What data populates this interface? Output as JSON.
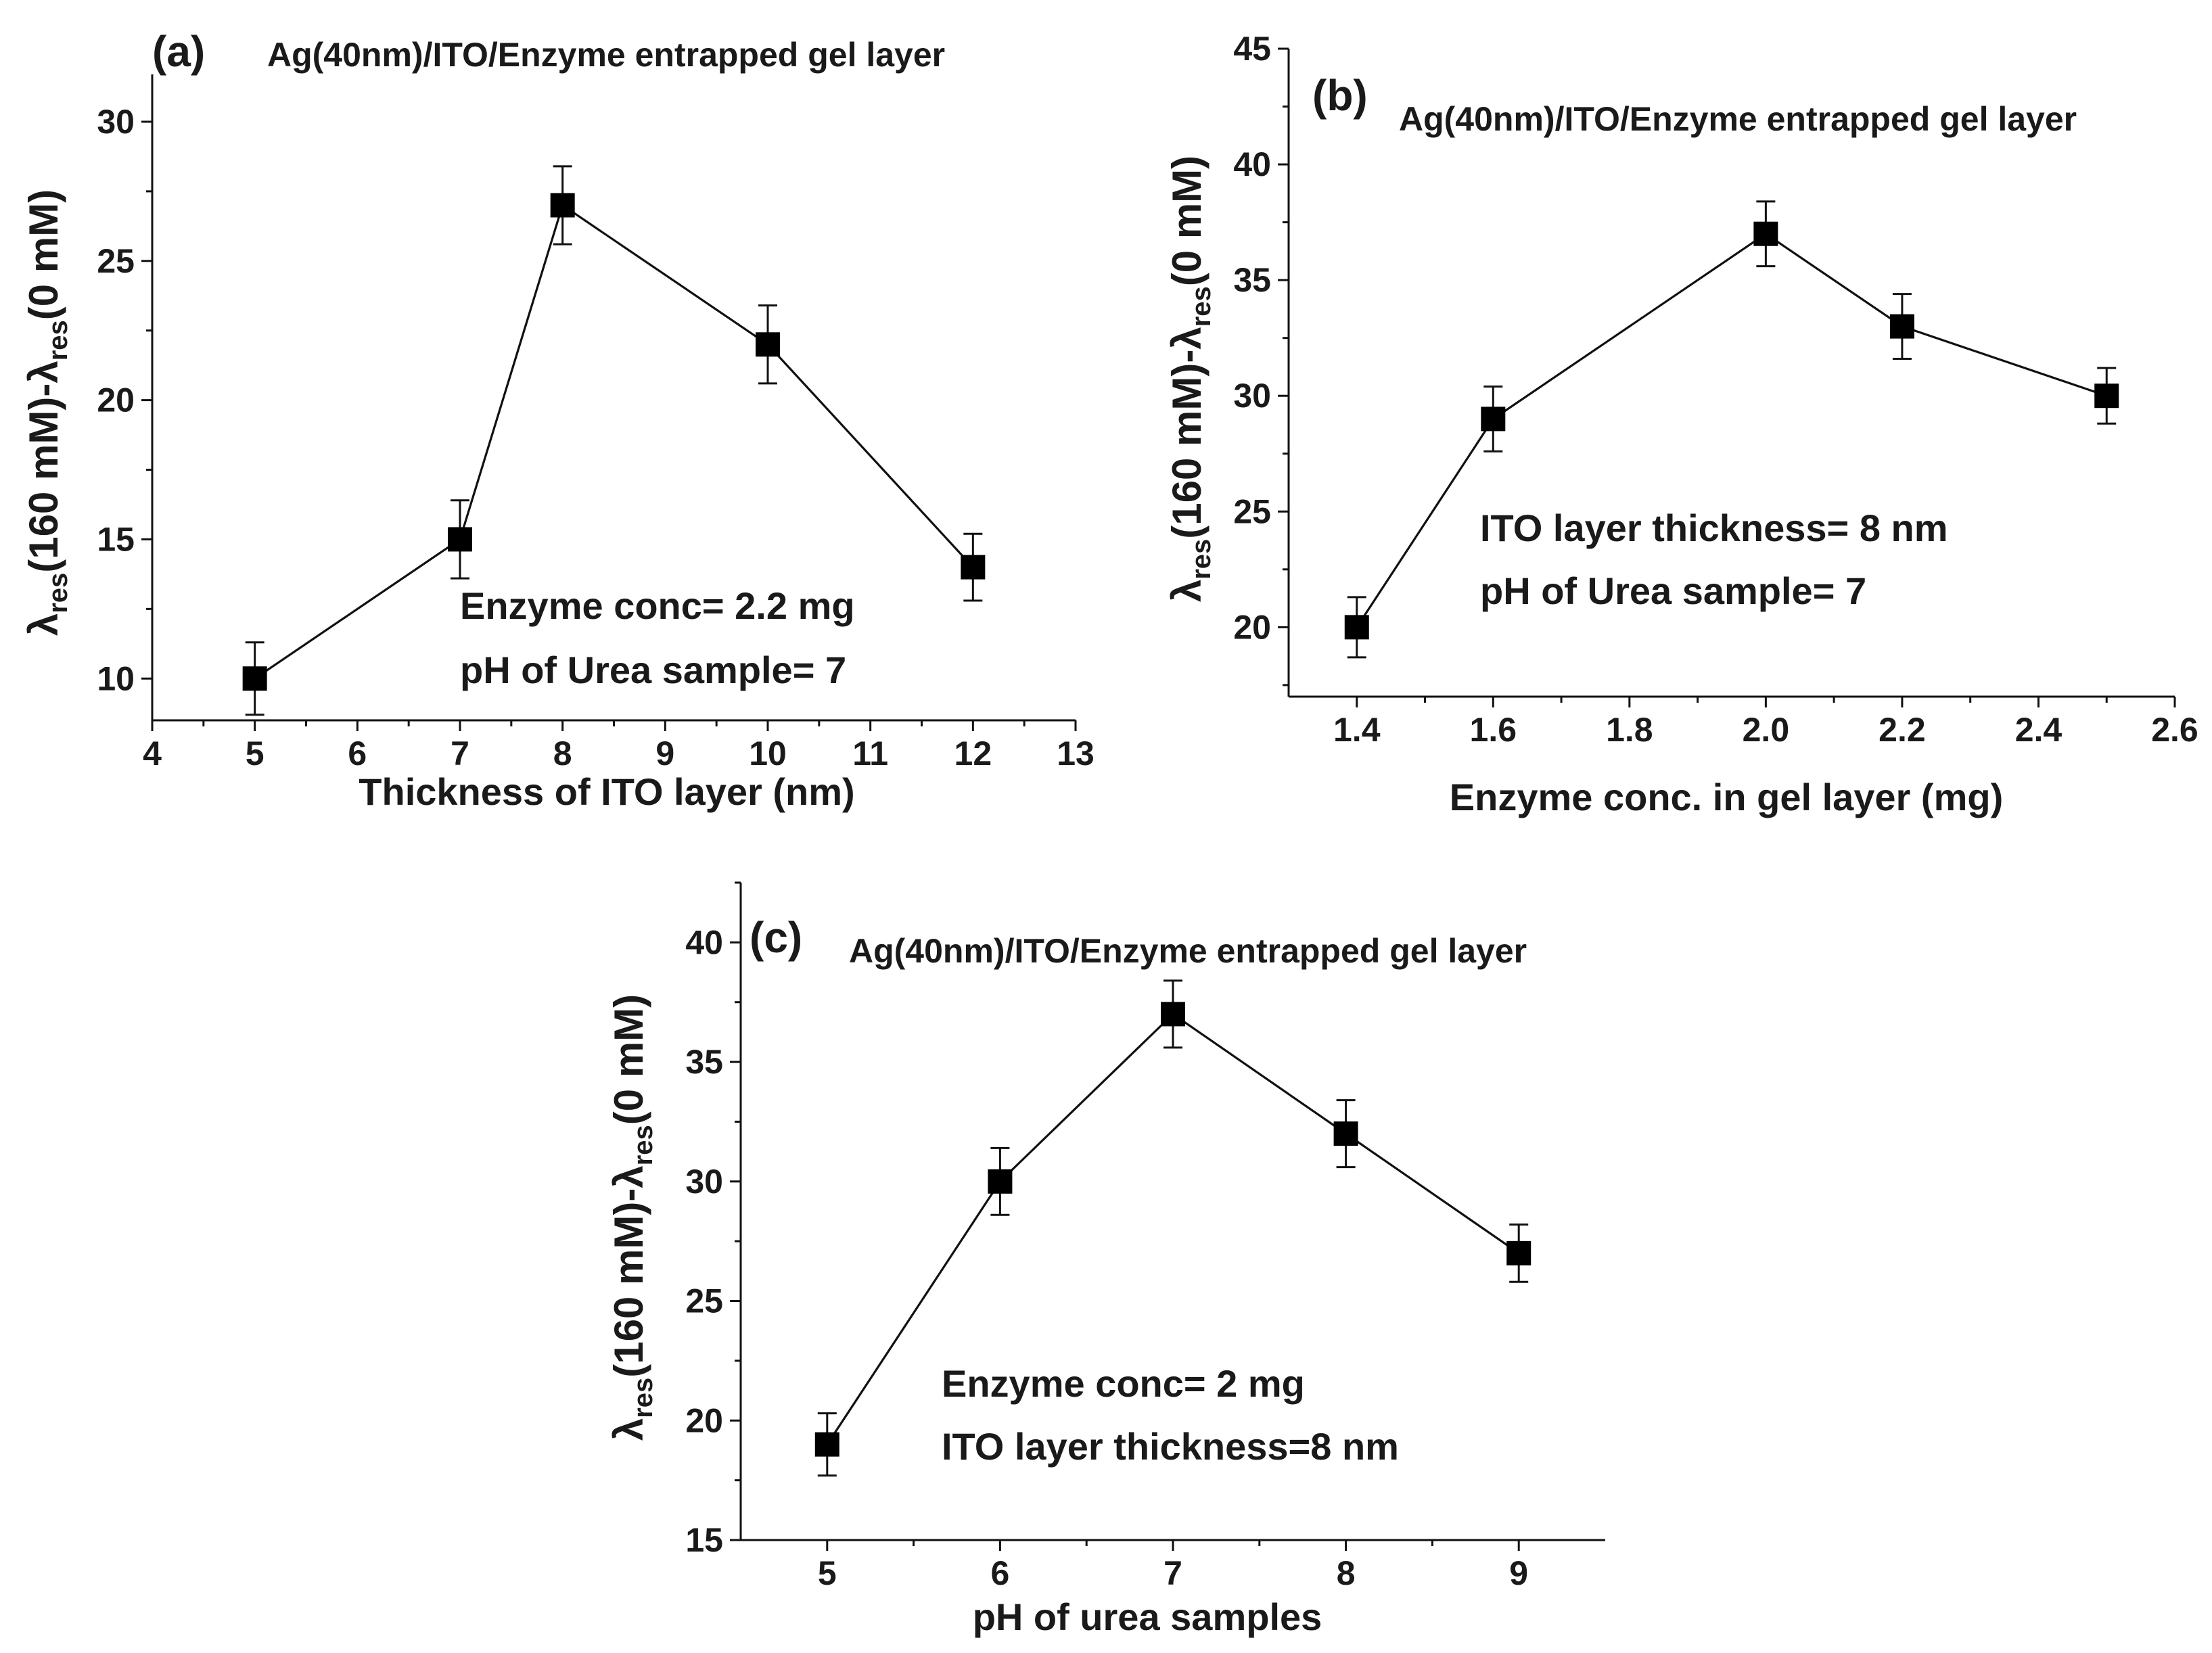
{
  "chart_data": [
    {
      "id": "a",
      "type": "line",
      "panel_label": "(a)",
      "title": "Ag(40nm)/ITO/Enzyme entrapped gel layer",
      "xlabel": "Thickness of ITO layer (nm)",
      "ylabel": {
        "sym1": "λ",
        "sub1": "res",
        "mid": "(160 mM)-",
        "sym2": "λ",
        "sub2": "res",
        "end": "(0 mM)"
      },
      "xlim": [
        4,
        13
      ],
      "ylim": [
        8.5,
        31.7
      ],
      "xticks": [
        4,
        5,
        6,
        7,
        8,
        9,
        10,
        11,
        12,
        13
      ],
      "xtick_labels": [
        "4",
        "5",
        "6",
        "7",
        "8",
        "9",
        "10",
        "11",
        "12",
        "13"
      ],
      "yticks": [
        10,
        15,
        20,
        25,
        30
      ],
      "ytick_labels": [
        "10",
        "15",
        "20",
        "25",
        "30"
      ],
      "x": [
        5,
        7,
        8,
        10,
        12
      ],
      "y": [
        10,
        15,
        27,
        22,
        14
      ],
      "err": [
        1.3,
        1.4,
        1.4,
        1.4,
        1.2
      ],
      "annotations": [
        "Enzyme conc= 2.2 mg",
        "pH of Urea sample= 7"
      ]
    },
    {
      "id": "b",
      "type": "line",
      "panel_label": "(b)",
      "title": "Ag(40nm)/ITO/Enzyme entrapped gel layer",
      "xlabel": "Enzyme conc. in gel layer (mg)",
      "ylabel": {
        "sym1": "λ",
        "sub1": "res",
        "mid": "(160 mM)-",
        "sym2": "λ",
        "sub2": "res",
        "end": "(0 mM)"
      },
      "xlim": [
        1.3,
        2.6
      ],
      "ylim": [
        17.0,
        45.0
      ],
      "xticks": [
        1.4,
        1.6,
        1.8,
        2.0,
        2.2,
        2.4,
        2.6
      ],
      "xtick_labels": [
        "1.4",
        "1.6",
        "1.8",
        "2.0",
        "2.2",
        "2.4",
        "2.6"
      ],
      "yticks": [
        20,
        25,
        30,
        35,
        40,
        45
      ],
      "ytick_labels": [
        "20",
        "25",
        "30",
        "35",
        "40",
        "45"
      ],
      "x": [
        1.4,
        1.6,
        2.0,
        2.2,
        2.5
      ],
      "y": [
        20,
        29,
        37,
        33,
        30
      ],
      "err": [
        1.3,
        1.4,
        1.4,
        1.4,
        1.2
      ],
      "annotations": [
        "ITO layer thickness= 8 nm",
        "pH of Urea sample= 7"
      ]
    },
    {
      "id": "c",
      "type": "line",
      "panel_label": "(c)",
      "title": "Ag(40nm)/ITO/Enzyme entrapped gel layer",
      "xlabel": "pH of urea samples",
      "ylabel": {
        "sym1": "λ",
        "sub1": "res",
        "mid": "(160 mM)-",
        "sym2": "λ",
        "sub2": "res",
        "end": "(0 mM)"
      },
      "xlim": [
        4.5,
        9.5
      ],
      "ylim": [
        15,
        42.5
      ],
      "xticks": [
        5,
        6,
        7,
        8,
        9
      ],
      "xtick_labels": [
        "5",
        "6",
        "7",
        "8",
        "9"
      ],
      "yticks": [
        15,
        20,
        25,
        30,
        35,
        40
      ],
      "ytick_labels": [
        "15",
        "20",
        "25",
        "30",
        "35",
        "40"
      ],
      "x": [
        5,
        6,
        7,
        8,
        9
      ],
      "y": [
        19,
        30,
        37,
        32,
        27
      ],
      "err": [
        1.3,
        1.4,
        1.4,
        1.4,
        1.2
      ],
      "annotations": [
        "Enzyme conc= 2 mg",
        "ITO layer thickness=8 nm"
      ]
    }
  ]
}
